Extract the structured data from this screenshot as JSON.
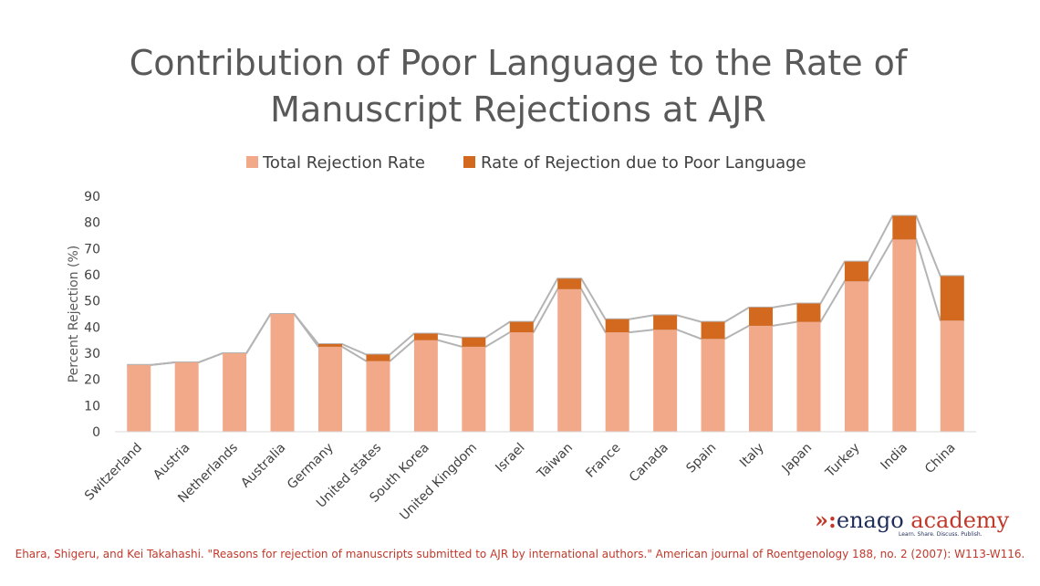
{
  "chart_data": {
    "type": "bar",
    "stacked": true,
    "title": [
      "Contribution of Poor Language to the Rate of",
      "Manuscript Rejections at AJR"
    ],
    "ylabel": "Percent Rejection (%)",
    "xlabel": "",
    "ylim": [
      0,
      90
    ],
    "yticks": [
      0,
      10,
      20,
      30,
      40,
      50,
      60,
      70,
      80,
      90
    ],
    "legend_position": "top",
    "gridlines": false,
    "categories": [
      "Switzerland",
      "Austria",
      "Netherlands",
      "Australia",
      "Germany",
      "United states",
      "South Korea",
      "United Kingdom",
      "Israel",
      "Taiwan",
      "France",
      "Canada",
      "Spain",
      "Italy",
      "Japan",
      "Turkey",
      "India",
      "China"
    ],
    "series": [
      {
        "name": "Total Rejection Rate",
        "color": "#f2a98a",
        "values": [
          25.5,
          26.5,
          30,
          45,
          32.5,
          27,
          35,
          32.5,
          38,
          54.5,
          38,
          39,
          35.5,
          40.5,
          42,
          57.5,
          73.5,
          42.5
        ]
      },
      {
        "name": "Rate of Rejection due to Poor Language",
        "color": "#d2691e",
        "values": [
          0,
          0,
          0,
          0,
          1,
          2.5,
          2.5,
          3.5,
          4,
          4,
          5,
          5.5,
          6.5,
          7,
          7,
          7.5,
          9,
          17
        ]
      }
    ],
    "connector_color": "#b4b4b4"
  },
  "brand": {
    "mark": "»:",
    "name_part1": "enago",
    "name_part2": " academy",
    "tagline": "Learn. Share. Discuss. Publish."
  },
  "citation": "Ehara, Shigeru, and Kei Takahashi. \"Reasons for rejection of manuscripts submitted to AJR by international authors.\" American journal of Roentgenology 188, no. 2 (2007): W113-W116."
}
